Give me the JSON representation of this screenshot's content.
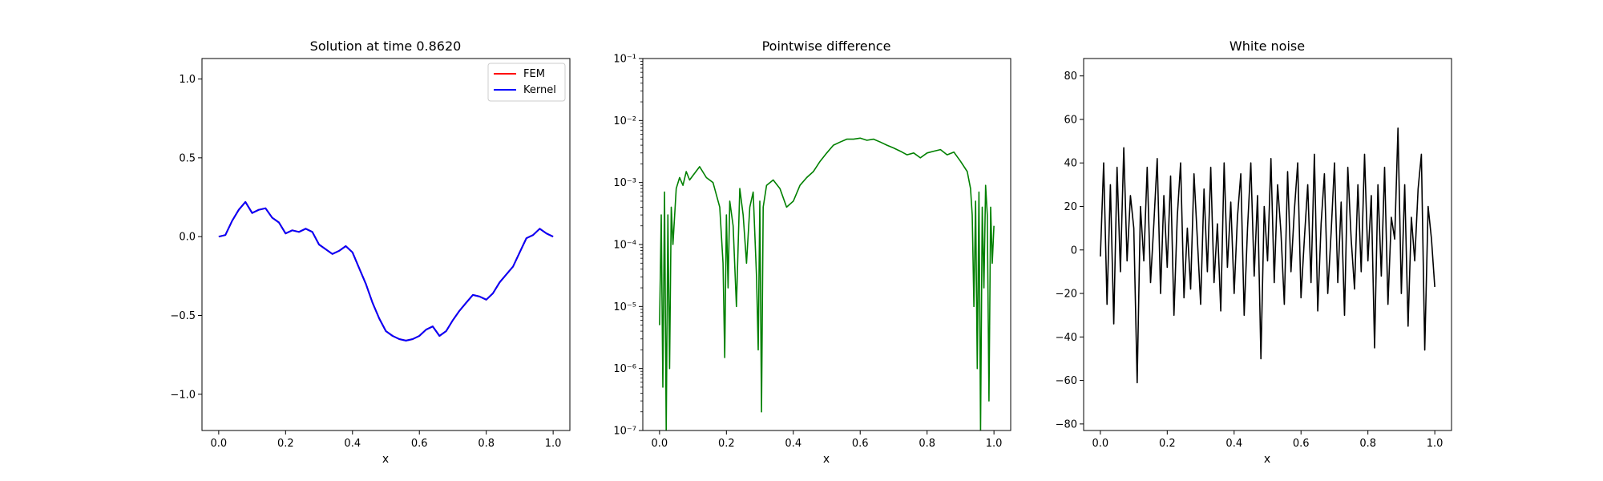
{
  "chart_data": [
    {
      "type": "line",
      "title": "Solution at time 0.8620",
      "xlabel": "x",
      "ylabel": "",
      "xlim": [
        -0.05,
        1.05
      ],
      "ylim": [
        -1.23,
        1.13
      ],
      "xticks": [
        0.0,
        0.2,
        0.4,
        0.6,
        0.8,
        1.0
      ],
      "xtick_labels": [
        "0.0",
        "0.2",
        "0.4",
        "0.6",
        "0.8",
        "1.0"
      ],
      "yticks": [
        -1.0,
        -0.5,
        0.0,
        0.5,
        1.0
      ],
      "ytick_labels": [
        "−1.0",
        "−0.5",
        "0.0",
        "0.5",
        "1.0"
      ],
      "legend": "top-right",
      "series": [
        {
          "name": "FEM",
          "color": "#ff0000",
          "x": [
            0.0,
            0.02,
            0.04,
            0.06,
            0.08,
            0.1,
            0.12,
            0.14,
            0.16,
            0.18,
            0.2,
            0.22,
            0.24,
            0.26,
            0.28,
            0.3,
            0.32,
            0.34,
            0.36,
            0.38,
            0.4,
            0.42,
            0.44,
            0.46,
            0.48,
            0.5,
            0.52,
            0.54,
            0.56,
            0.58,
            0.6,
            0.62,
            0.64,
            0.66,
            0.68,
            0.7,
            0.72,
            0.74,
            0.76,
            0.78,
            0.8,
            0.82,
            0.84,
            0.86,
            0.88,
            0.9,
            0.92,
            0.94,
            0.96,
            0.98,
            1.0
          ],
          "y": [
            0.0,
            0.01,
            0.1,
            0.17,
            0.22,
            0.15,
            0.17,
            0.18,
            0.12,
            0.09,
            0.02,
            0.04,
            0.03,
            0.05,
            0.03,
            -0.05,
            -0.08,
            -0.11,
            -0.09,
            -0.06,
            -0.1,
            -0.2,
            -0.3,
            -0.42,
            -0.52,
            -0.6,
            -0.63,
            -0.65,
            -0.66,
            -0.65,
            -0.63,
            -0.59,
            -0.57,
            -0.63,
            -0.6,
            -0.53,
            -0.47,
            -0.42,
            -0.37,
            -0.38,
            -0.4,
            -0.36,
            -0.29,
            -0.24,
            -0.19,
            -0.1,
            -0.01,
            0.01,
            0.05,
            0.02,
            0.0
          ]
        },
        {
          "name": "Kernel",
          "color": "#0000ff",
          "x": [
            0.0,
            0.02,
            0.04,
            0.06,
            0.08,
            0.1,
            0.12,
            0.14,
            0.16,
            0.18,
            0.2,
            0.22,
            0.24,
            0.26,
            0.28,
            0.3,
            0.32,
            0.34,
            0.36,
            0.38,
            0.4,
            0.42,
            0.44,
            0.46,
            0.48,
            0.5,
            0.52,
            0.54,
            0.56,
            0.58,
            0.6,
            0.62,
            0.64,
            0.66,
            0.68,
            0.7,
            0.72,
            0.74,
            0.76,
            0.78,
            0.8,
            0.82,
            0.84,
            0.86,
            0.88,
            0.9,
            0.92,
            0.94,
            0.96,
            0.98,
            1.0
          ],
          "y": [
            0.0,
            0.01,
            0.1,
            0.17,
            0.22,
            0.15,
            0.17,
            0.18,
            0.12,
            0.09,
            0.02,
            0.04,
            0.03,
            0.05,
            0.03,
            -0.05,
            -0.08,
            -0.11,
            -0.09,
            -0.06,
            -0.1,
            -0.2,
            -0.3,
            -0.42,
            -0.52,
            -0.6,
            -0.63,
            -0.65,
            -0.66,
            -0.65,
            -0.63,
            -0.59,
            -0.57,
            -0.63,
            -0.6,
            -0.53,
            -0.47,
            -0.42,
            -0.37,
            -0.38,
            -0.4,
            -0.36,
            -0.29,
            -0.24,
            -0.19,
            -0.1,
            -0.01,
            0.01,
            0.05,
            0.02,
            0.0
          ]
        }
      ]
    },
    {
      "type": "line",
      "title": "Pointwise difference",
      "xlabel": "x",
      "ylabel": "",
      "yscale": "log",
      "xlim": [
        -0.05,
        1.05
      ],
      "ylim": [
        1e-07,
        0.1
      ],
      "xticks": [
        0.0,
        0.2,
        0.4,
        0.6,
        0.8,
        1.0
      ],
      "xtick_labels": [
        "0.0",
        "0.2",
        "0.4",
        "0.6",
        "0.8",
        "1.0"
      ],
      "yticks": [
        1e-07,
        1e-06,
        1e-05,
        0.0001,
        0.001,
        0.01,
        0.1
      ],
      "ytick_labels": [
        "10⁻⁷",
        "10⁻⁶",
        "10⁻⁵",
        "10⁻⁴",
        "10⁻³",
        "10⁻²",
        "10⁻¹"
      ],
      "series": [
        {
          "color": "#008000",
          "x": [
            0.0,
            0.005,
            0.01,
            0.015,
            0.02,
            0.025,
            0.03,
            0.035,
            0.04,
            0.05,
            0.06,
            0.07,
            0.08,
            0.09,
            0.1,
            0.12,
            0.14,
            0.16,
            0.18,
            0.19,
            0.195,
            0.2,
            0.205,
            0.21,
            0.22,
            0.23,
            0.24,
            0.25,
            0.26,
            0.27,
            0.28,
            0.29,
            0.295,
            0.3,
            0.305,
            0.31,
            0.32,
            0.34,
            0.36,
            0.38,
            0.4,
            0.42,
            0.44,
            0.46,
            0.48,
            0.5,
            0.52,
            0.54,
            0.56,
            0.58,
            0.6,
            0.62,
            0.64,
            0.66,
            0.68,
            0.7,
            0.72,
            0.74,
            0.76,
            0.78,
            0.8,
            0.82,
            0.84,
            0.86,
            0.88,
            0.9,
            0.92,
            0.93,
            0.935,
            0.94,
            0.945,
            0.95,
            0.955,
            0.96,
            0.965,
            0.97,
            0.975,
            0.98,
            0.985,
            0.99,
            0.995,
            1.0
          ],
          "y": [
            5e-06,
            0.0003,
            5e-07,
            0.0007,
            1e-07,
            0.0003,
            1e-06,
            0.0004,
            0.0001,
            0.0008,
            0.0012,
            0.0009,
            0.0015,
            0.0011,
            0.0013,
            0.0018,
            0.0012,
            0.001,
            0.0004,
            5e-05,
            1.5e-06,
            0.0003,
            2e-05,
            0.0005,
            0.0002,
            1e-05,
            0.0008,
            0.0003,
            5e-05,
            0.0004,
            0.0007,
            3e-05,
            2e-06,
            0.0005,
            2e-07,
            0.0004,
            0.0009,
            0.0011,
            0.0008,
            0.0004,
            0.0005,
            0.0009,
            0.0012,
            0.0015,
            0.0022,
            0.003,
            0.004,
            0.0045,
            0.005,
            0.005,
            0.0052,
            0.0048,
            0.005,
            0.0045,
            0.004,
            0.0036,
            0.0032,
            0.0028,
            0.003,
            0.0025,
            0.003,
            0.0032,
            0.0034,
            0.0028,
            0.0031,
            0.0022,
            0.0015,
            0.0008,
            0.0003,
            1e-05,
            0.0005,
            1e-06,
            0.0007,
            1e-07,
            0.0004,
            2e-05,
            0.0009,
            0.0003,
            3e-07,
            0.0004,
            5e-05,
            0.0002
          ]
        }
      ]
    },
    {
      "type": "line",
      "title": "White noise",
      "xlabel": "x",
      "ylabel": "",
      "xlim": [
        -0.05,
        1.05
      ],
      "ylim": [
        -83,
        88
      ],
      "xticks": [
        0.0,
        0.2,
        0.4,
        0.6,
        0.8,
        1.0
      ],
      "xtick_labels": [
        "0.0",
        "0.2",
        "0.4",
        "0.6",
        "0.8",
        "1.0"
      ],
      "yticks": [
        -80,
        -60,
        -40,
        -20,
        0,
        20,
        40,
        60,
        80
      ],
      "ytick_labels": [
        "−80",
        "−60",
        "−40",
        "−20",
        "0",
        "20",
        "40",
        "60",
        "80"
      ],
      "series": [
        {
          "color": "#000000",
          "x": [
            0.0,
            0.01,
            0.02,
            0.03,
            0.04,
            0.05,
            0.06,
            0.07,
            0.08,
            0.09,
            0.1,
            0.11,
            0.12,
            0.13,
            0.14,
            0.15,
            0.16,
            0.17,
            0.18,
            0.19,
            0.2,
            0.21,
            0.22,
            0.23,
            0.24,
            0.25,
            0.26,
            0.27,
            0.28,
            0.29,
            0.3,
            0.31,
            0.32,
            0.33,
            0.34,
            0.35,
            0.36,
            0.37,
            0.38,
            0.39,
            0.4,
            0.41,
            0.42,
            0.43,
            0.44,
            0.45,
            0.46,
            0.47,
            0.48,
            0.49,
            0.5,
            0.51,
            0.52,
            0.53,
            0.54,
            0.55,
            0.56,
            0.57,
            0.58,
            0.59,
            0.6,
            0.61,
            0.62,
            0.63,
            0.64,
            0.65,
            0.66,
            0.67,
            0.68,
            0.69,
            0.7,
            0.71,
            0.72,
            0.73,
            0.74,
            0.75,
            0.76,
            0.77,
            0.78,
            0.79,
            0.8,
            0.81,
            0.82,
            0.83,
            0.84,
            0.85,
            0.86,
            0.87,
            0.88,
            0.89,
            0.9,
            0.91,
            0.92,
            0.93,
            0.94,
            0.95,
            0.96,
            0.97,
            0.98,
            0.99,
            1.0
          ],
          "y": [
            -3,
            40,
            -25,
            30,
            -34,
            38,
            -10,
            47,
            -5,
            25,
            10,
            -61,
            20,
            -5,
            38,
            -15,
            12,
            42,
            -20,
            25,
            -8,
            34,
            -30,
            15,
            40,
            -22,
            10,
            -18,
            35,
            5,
            -25,
            28,
            -10,
            38,
            -15,
            12,
            -28,
            40,
            -8,
            22,
            -20,
            15,
            35,
            -30,
            10,
            40,
            -12,
            25,
            -50,
            20,
            -5,
            42,
            -15,
            30,
            8,
            -25,
            36,
            -10,
            18,
            40,
            -22,
            5,
            30,
            -15,
            44,
            -28,
            12,
            35,
            -20,
            8,
            40,
            -15,
            22,
            -30,
            38,
            5,
            -18,
            30,
            -10,
            44,
            -5,
            25,
            -45,
            30,
            -12,
            38,
            -25,
            15,
            5,
            56,
            -20,
            30,
            -35,
            15,
            -5,
            28,
            44,
            -46,
            20,
            5,
            -17
          ]
        }
      ]
    }
  ]
}
